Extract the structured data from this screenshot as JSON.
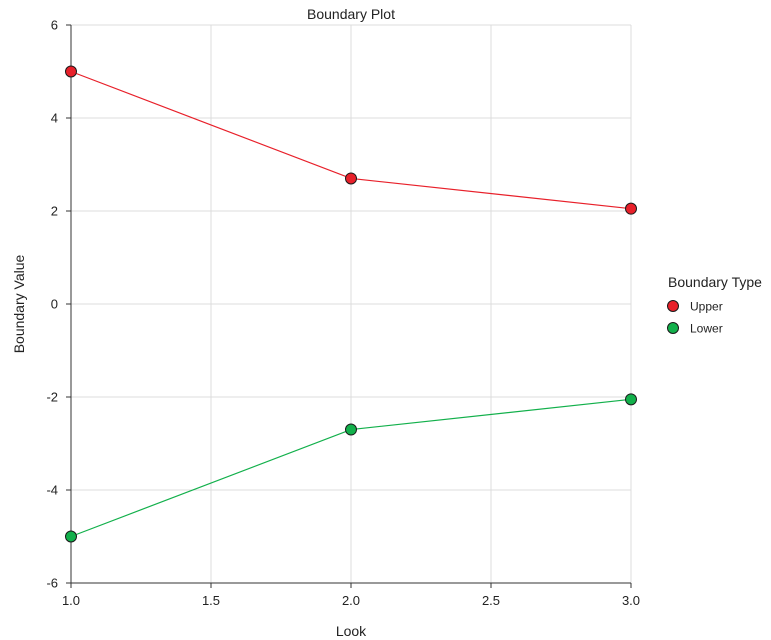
{
  "chart_data": {
    "type": "line",
    "title": "Boundary Plot",
    "xlabel": "Look",
    "ylabel": "Boundary Value",
    "x": [
      1.0,
      2.0,
      3.0
    ],
    "xlim": [
      1.0,
      3.0
    ],
    "ylim": [
      -6,
      6
    ],
    "xticks": [
      1.0,
      1.5,
      2.0,
      2.5,
      3.0
    ],
    "xtick_labels": [
      "1.0",
      "1.5",
      "2.0",
      "2.5",
      "3.0"
    ],
    "yticks": [
      -6,
      -4,
      -2,
      0,
      2,
      4,
      6
    ],
    "ytick_labels": [
      "-6",
      "-4",
      "-2",
      "0",
      "2",
      "4",
      "6"
    ],
    "grid": true,
    "legend": {
      "title": "Boundary Type",
      "placement": "right"
    },
    "series": [
      {
        "name": "Upper",
        "values": [
          5.0,
          2.7,
          2.05
        ],
        "color": "#e8202a",
        "marker": "circle"
      },
      {
        "name": "Lower",
        "values": [
          -5.0,
          -2.7,
          -2.05
        ],
        "color": "#12b04b",
        "marker": "circle"
      }
    ]
  }
}
